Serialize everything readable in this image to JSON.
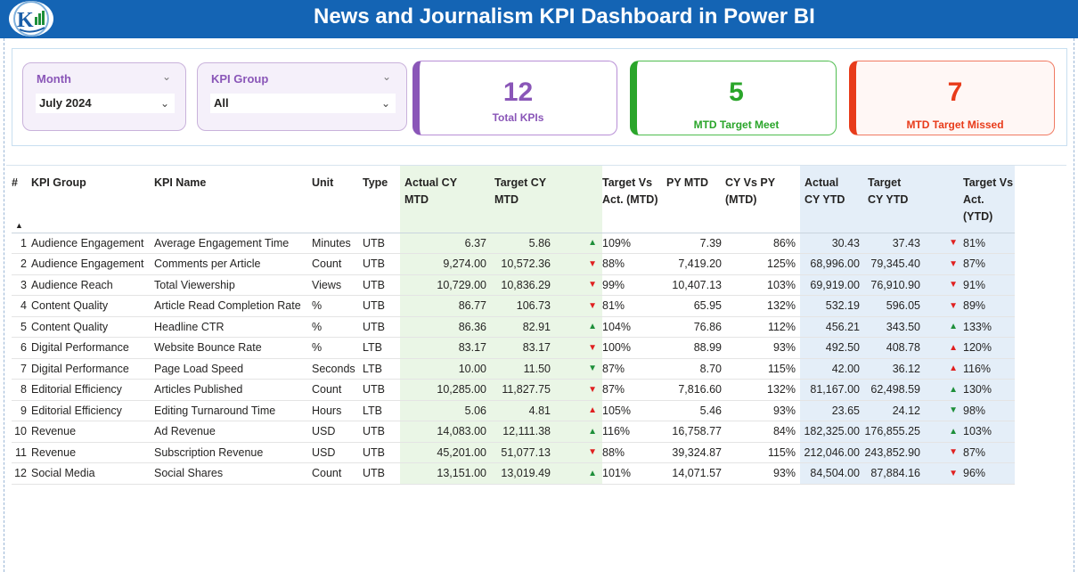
{
  "header": {
    "title": "News and Journalism KPI Dashboard in Power BI",
    "logo_icon": "company-logo"
  },
  "slicers": {
    "month": {
      "label": "Month",
      "value": "July 2024"
    },
    "kpi_group": {
      "label": "KPI Group",
      "value": "All"
    }
  },
  "cards": {
    "total": {
      "value": "12",
      "caption": "Total KPIs",
      "color": "#8a56b8"
    },
    "met": {
      "value": "5",
      "caption": "MTD Target Meet",
      "color": "#2aa52a"
    },
    "missed": {
      "value": "7",
      "caption": "MTD Target Missed",
      "color": "#e83b1a"
    }
  },
  "table": {
    "columns": [
      "#",
      "KPI Group",
      "KPI Name",
      "Unit",
      "Type",
      "Actual CY MTD",
      "Target CY MTD",
      "Target Vs Act. (MTD)",
      "PY MTD",
      "CY Vs PY (MTD)",
      "Actual CY YTD",
      "Target CY YTD",
      "Target Vs Act. (YTD)"
    ],
    "sort_icon": "sort-ascending-icon",
    "rows": [
      {
        "n": "1",
        "group": "Audience Engagement",
        "name": "Average Engagement Time",
        "unit": "Minutes",
        "type": "UTB",
        "act_mtd": "6.37",
        "tgt_mtd": "5.86",
        "mtd_dir": "up",
        "mtd_pct": "109%",
        "py_mtd": "7.39",
        "cy_py": "86%",
        "act_ytd": "30.43",
        "tgt_ytd": "37.43",
        "ytd_dir": "down",
        "ytd_pct": "81%"
      },
      {
        "n": "2",
        "group": "Audience Engagement",
        "name": "Comments per Article",
        "unit": "Count",
        "type": "UTB",
        "act_mtd": "9,274.00",
        "tgt_mtd": "10,572.36",
        "mtd_dir": "down",
        "mtd_pct": "88%",
        "py_mtd": "7,419.20",
        "cy_py": "125%",
        "act_ytd": "68,996.00",
        "tgt_ytd": "79,345.40",
        "ytd_dir": "down",
        "ytd_pct": "87%"
      },
      {
        "n": "3",
        "group": "Audience Reach",
        "name": "Total Viewership",
        "unit": "Views",
        "type": "UTB",
        "act_mtd": "10,729.00",
        "tgt_mtd": "10,836.29",
        "mtd_dir": "down",
        "mtd_pct": "99%",
        "py_mtd": "10,407.13",
        "cy_py": "103%",
        "act_ytd": "69,919.00",
        "tgt_ytd": "76,910.90",
        "ytd_dir": "down",
        "ytd_pct": "91%"
      },
      {
        "n": "4",
        "group": "Content Quality",
        "name": "Article Read Completion Rate",
        "unit": "%",
        "type": "UTB",
        "act_mtd": "86.77",
        "tgt_mtd": "106.73",
        "mtd_dir": "down",
        "mtd_pct": "81%",
        "py_mtd": "65.95",
        "cy_py": "132%",
        "act_ytd": "532.19",
        "tgt_ytd": "596.05",
        "ytd_dir": "down",
        "ytd_pct": "89%"
      },
      {
        "n": "5",
        "group": "Content Quality",
        "name": "Headline CTR",
        "unit": "%",
        "type": "UTB",
        "act_mtd": "86.36",
        "tgt_mtd": "82.91",
        "mtd_dir": "up",
        "mtd_pct": "104%",
        "py_mtd": "76.86",
        "cy_py": "112%",
        "act_ytd": "456.21",
        "tgt_ytd": "343.50",
        "ytd_dir": "up",
        "ytd_pct": "133%"
      },
      {
        "n": "6",
        "group": "Digital Performance",
        "name": "Website Bounce Rate",
        "unit": "%",
        "type": "LTB",
        "act_mtd": "83.17",
        "tgt_mtd": "83.17",
        "mtd_dir": "down",
        "mtd_pct": "100%",
        "py_mtd": "88.99",
        "cy_py": "93%",
        "act_ytd": "492.50",
        "tgt_ytd": "408.78",
        "ytd_dir": "up-red",
        "ytd_pct": "120%"
      },
      {
        "n": "7",
        "group": "Digital Performance",
        "name": "Page Load Speed",
        "unit": "Seconds",
        "type": "LTB",
        "act_mtd": "10.00",
        "tgt_mtd": "11.50",
        "mtd_dir": "down-green",
        "mtd_pct": "87%",
        "py_mtd": "8.70",
        "cy_py": "115%",
        "act_ytd": "42.00",
        "tgt_ytd": "36.12",
        "ytd_dir": "up-red",
        "ytd_pct": "116%"
      },
      {
        "n": "8",
        "group": "Editorial Efficiency",
        "name": "Articles Published",
        "unit": "Count",
        "type": "UTB",
        "act_mtd": "10,285.00",
        "tgt_mtd": "11,827.75",
        "mtd_dir": "down",
        "mtd_pct": "87%",
        "py_mtd": "7,816.60",
        "cy_py": "132%",
        "act_ytd": "81,167.00",
        "tgt_ytd": "62,498.59",
        "ytd_dir": "up",
        "ytd_pct": "130%"
      },
      {
        "n": "9",
        "group": "Editorial Efficiency",
        "name": "Editing Turnaround Time",
        "unit": "Hours",
        "type": "LTB",
        "act_mtd": "5.06",
        "tgt_mtd": "4.81",
        "mtd_dir": "up-red",
        "mtd_pct": "105%",
        "py_mtd": "5.46",
        "cy_py": "93%",
        "act_ytd": "23.65",
        "tgt_ytd": "24.12",
        "ytd_dir": "down-green",
        "ytd_pct": "98%"
      },
      {
        "n": "10",
        "group": "Revenue",
        "name": "Ad Revenue",
        "unit": "USD",
        "type": "UTB",
        "act_mtd": "14,083.00",
        "tgt_mtd": "12,111.38",
        "mtd_dir": "up",
        "mtd_pct": "116%",
        "py_mtd": "16,758.77",
        "cy_py": "84%",
        "act_ytd": "182,325.00",
        "tgt_ytd": "176,855.25",
        "ytd_dir": "up",
        "ytd_pct": "103%"
      },
      {
        "n": "11",
        "group": "Revenue",
        "name": "Subscription Revenue",
        "unit": "USD",
        "type": "UTB",
        "act_mtd": "45,201.00",
        "tgt_mtd": "51,077.13",
        "mtd_dir": "down",
        "mtd_pct": "88%",
        "py_mtd": "39,324.87",
        "cy_py": "115%",
        "act_ytd": "212,046.00",
        "tgt_ytd": "243,852.90",
        "ytd_dir": "down",
        "ytd_pct": "87%"
      },
      {
        "n": "12",
        "group": "Social Media",
        "name": "Social Shares",
        "unit": "Count",
        "type": "UTB",
        "act_mtd": "13,151.00",
        "tgt_mtd": "13,019.49",
        "mtd_dir": "up",
        "mtd_pct": "101%",
        "py_mtd": "14,071.57",
        "cy_py": "93%",
        "act_ytd": "84,504.00",
        "tgt_ytd": "87,884.16",
        "ytd_dir": "down",
        "ytd_pct": "96%"
      }
    ]
  },
  "colors": {
    "header_bg": "#1464b4",
    "up": "#1e8f3a",
    "down": "#e02020",
    "mtd_bg": "#eaf6e6",
    "ytd_bg": "#e4eef8"
  }
}
